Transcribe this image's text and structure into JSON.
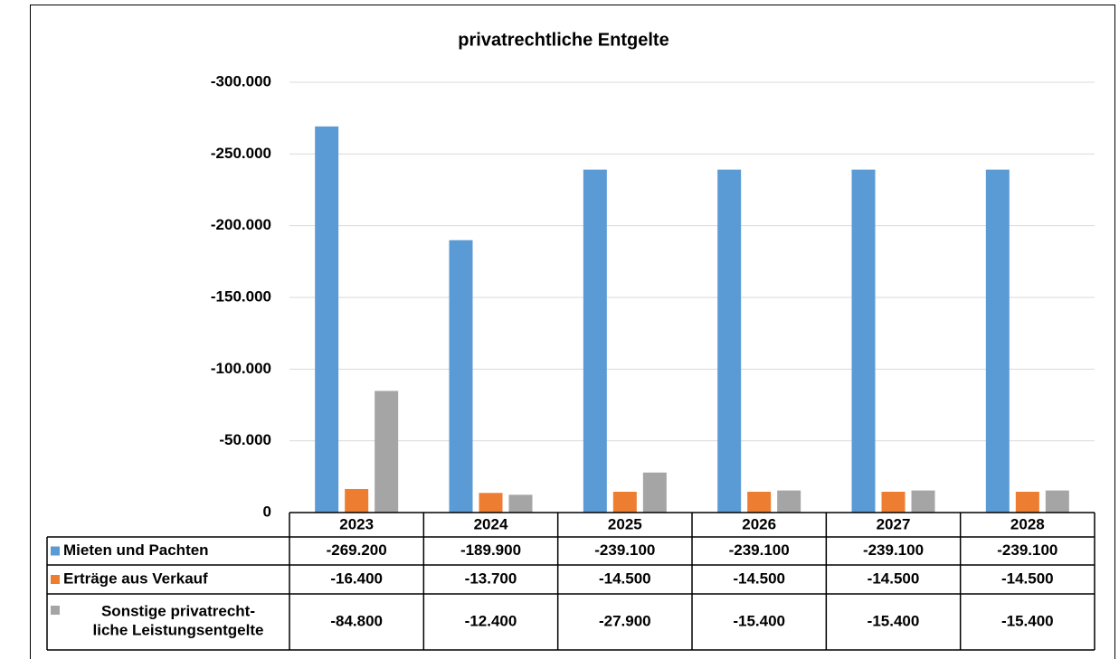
{
  "chart_data": {
    "type": "bar",
    "title": "privatrechtliche Entgelte",
    "categories": [
      "2023",
      "2024",
      "2025",
      "2026",
      "2027",
      "2028"
    ],
    "series": [
      {
        "name": "Mieten und Pachten",
        "color": "#5b9bd5",
        "values": [
          -269200,
          -189900,
          -239100,
          -239100,
          -239100,
          -239100
        ],
        "value_labels": [
          "-269.200",
          "-189.900",
          "-239.100",
          "-239.100",
          "-239.100",
          "-239.100"
        ]
      },
      {
        "name": "Erträge aus Verkauf",
        "color": "#ed7d31",
        "values": [
          -16400,
          -13700,
          -14500,
          -14500,
          -14500,
          -14500
        ],
        "value_labels": [
          "-16.400",
          "-13.700",
          "-14.500",
          "-14.500",
          "-14.500",
          "-14.500"
        ]
      },
      {
        "name": "Sonstige privatrecht-\nliche Leistungsentgelte",
        "color": "#a5a5a5",
        "values": [
          -84800,
          -12400,
          -27900,
          -15400,
          -15400,
          -15400
        ],
        "value_labels": [
          "-84.800",
          "-12.400",
          "-27.900",
          "-15.400",
          "-15.400",
          "-15.400"
        ]
      }
    ],
    "ylim": [
      0,
      -300000
    ],
    "yticks": [
      0,
      {
        "value": -50000,
        "label": "-50.000"
      },
      {
        "value": -100000,
        "label": "-100.000"
      },
      {
        "value": -150000,
        "label": "-150.000"
      },
      {
        "value": -200000,
        "label": "-200.000"
      },
      {
        "value": -250000,
        "label": "-250.000"
      },
      {
        "value": -300000,
        "label": "-300.000"
      }
    ],
    "grid": true
  }
}
